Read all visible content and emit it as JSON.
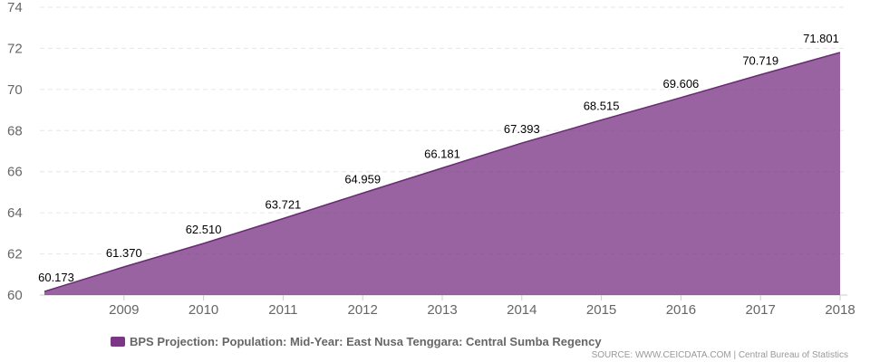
{
  "chart_data": {
    "type": "area",
    "title": "",
    "xlabel": "",
    "ylabel": "",
    "x": [
      "2008",
      "2009",
      "2010",
      "2011",
      "2012",
      "2013",
      "2014",
      "2015",
      "2016",
      "2017",
      "2018"
    ],
    "x_tick_labels": [
      "2009",
      "2010",
      "2011",
      "2012",
      "2013",
      "2014",
      "2015",
      "2016",
      "2017",
      "2018"
    ],
    "y_ticks": [
      "60",
      "62",
      "64",
      "66",
      "68",
      "70",
      "72",
      "74"
    ],
    "ylim": [
      60,
      74
    ],
    "grid": true,
    "legend_position": "bottom",
    "series": [
      {
        "name": "BPS Projection: Population: Mid-Year: East Nusa Tenggara: Central Sumba Regency",
        "values": [
          60.173,
          61.37,
          62.51,
          63.721,
          64.959,
          66.181,
          67.393,
          68.515,
          69.606,
          70.719,
          71.801
        ],
        "value_labels": [
          "60.173",
          "61.370",
          "62.510",
          "63.721",
          "64.959",
          "66.181",
          "67.393",
          "68.515",
          "69.606",
          "70.719",
          "71.801"
        ],
        "color": "#7b3785"
      }
    ]
  },
  "legend": {
    "label": "BPS Projection: Population: Mid-Year: East Nusa Tenggara: Central Sumba Regency",
    "color": "#7b3785"
  },
  "source": "SOURCE: WWW.CEICDATA.COM | Central Bureau of Statistics"
}
